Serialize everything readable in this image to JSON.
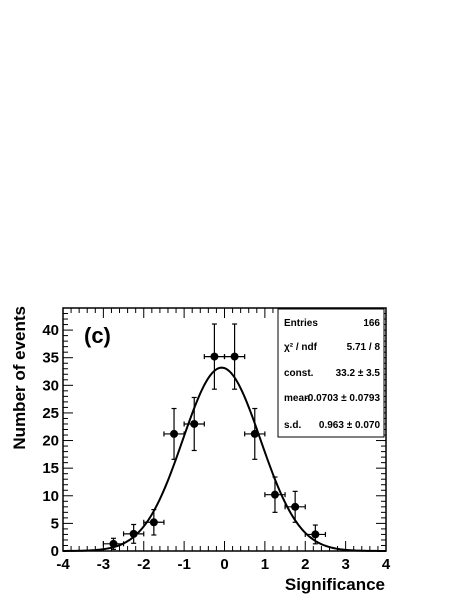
{
  "chart_data": {
    "type": "scatter",
    "panel_label": "(c)",
    "xlabel": "Significance",
    "ylabel": "Number of events",
    "xlim": [
      -4,
      4
    ],
    "ylim": [
      0,
      44
    ],
    "x_ticks": [
      "-4",
      "-3",
      "-2",
      "-1",
      "0",
      "1",
      "2",
      "3",
      "4"
    ],
    "y_ticks": [
      "0",
      "5",
      "10",
      "15",
      "20",
      "25",
      "30",
      "35",
      "40"
    ],
    "points": [
      {
        "x": -2.75,
        "y": 1.3,
        "yerr": 1.0
      },
      {
        "x": -2.25,
        "y": 3.1,
        "yerr": 1.7
      },
      {
        "x": -1.75,
        "y": 5.2,
        "yerr": 2.3
      },
      {
        "x": -1.25,
        "y": 21.2,
        "yerr": 4.6
      },
      {
        "x": -0.75,
        "y": 23.0,
        "yerr": 4.8
      },
      {
        "x": -0.25,
        "y": 35.2,
        "yerr": 5.9
      },
      {
        "x": 0.25,
        "y": 35.2,
        "yerr": 5.9
      },
      {
        "x": 0.75,
        "y": 21.2,
        "yerr": 4.6
      },
      {
        "x": 1.25,
        "y": 10.2,
        "yerr": 3.2
      },
      {
        "x": 1.75,
        "y": 8.0,
        "yerr": 2.8
      },
      {
        "x": 2.25,
        "y": 3.0,
        "yerr": 1.7
      }
    ],
    "bin_half_width": 0.25,
    "fit": {
      "type": "gaussian",
      "const": 33.2,
      "mean": -0.0703,
      "sd": 0.963
    },
    "stats_box": {
      "position": "top-right",
      "rows": [
        {
          "label": "Entries",
          "value": "166"
        },
        {
          "label": "χ² / ndf",
          "value": "5.71 / 8"
        },
        {
          "label": "const.",
          "value": "33.2 ± 3.5"
        },
        {
          "label": "mean",
          "value": "-0.0703 ± 0.0793"
        },
        {
          "label": "s.d.",
          "value": "0.963 ± 0.070"
        }
      ]
    }
  }
}
